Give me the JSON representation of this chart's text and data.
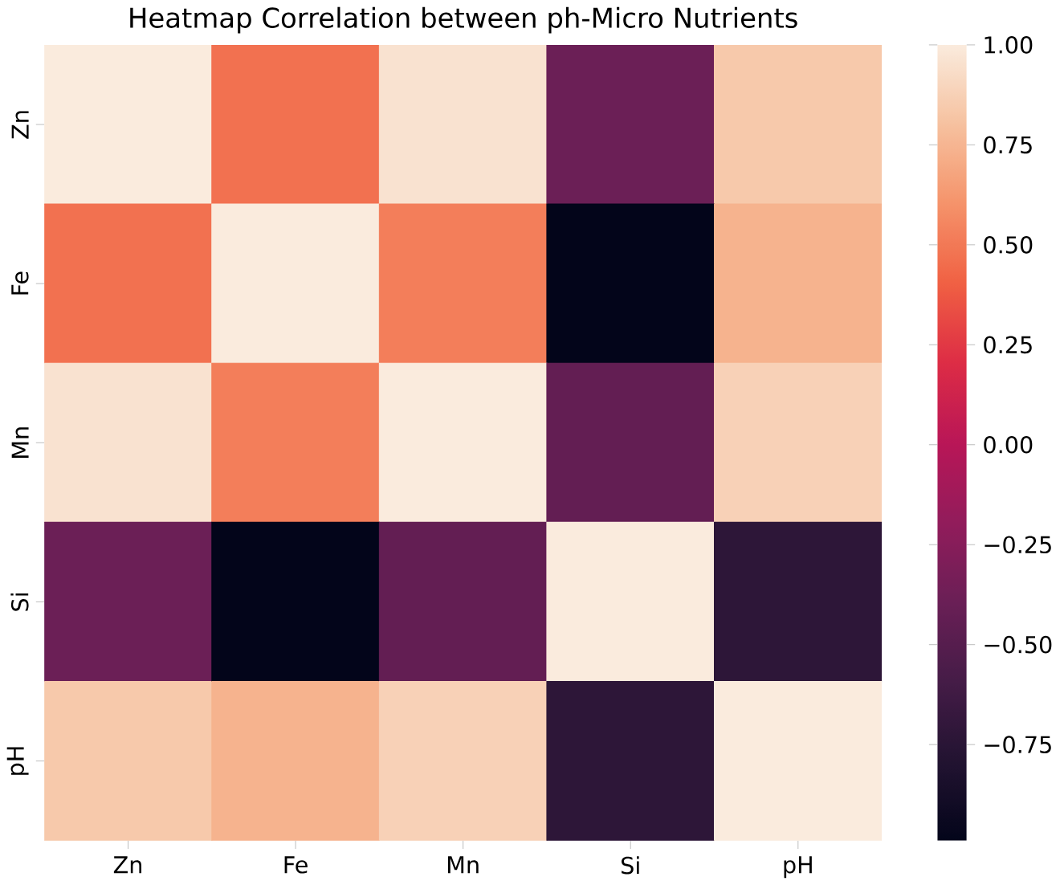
{
  "chart_data": {
    "type": "heatmap",
    "title": "Heatmap Correlation between ph-Micro Nutrients",
    "categories": [
      "Zn",
      "Fe",
      "Mn",
      "Si",
      "pH"
    ],
    "y_categories": [
      "Zn",
      "Fe",
      "Mn",
      "Si",
      "pH"
    ],
    "cells": [
      [
        1.0,
        0.47,
        0.96,
        -0.39,
        0.84
      ],
      [
        0.47,
        1.0,
        0.52,
        -0.99,
        0.74
      ],
      [
        0.96,
        0.52,
        1.0,
        -0.43,
        0.88
      ],
      [
        -0.39,
        -0.99,
        -0.43,
        1.0,
        -0.73
      ],
      [
        0.84,
        0.74,
        0.88,
        -0.73,
        1.0
      ]
    ],
    "clim": [
      -0.99,
      1.0
    ],
    "cticks": [
      {
        "value": 1.0,
        "label": "1.00"
      },
      {
        "value": 0.75,
        "label": "0.75"
      },
      {
        "value": 0.5,
        "label": "0.50"
      },
      {
        "value": 0.25,
        "label": "0.25"
      },
      {
        "value": 0.0,
        "label": "0.00"
      },
      {
        "value": -0.25,
        "label": "−0.25"
      },
      {
        "value": -0.5,
        "label": "−0.50"
      },
      {
        "value": -0.75,
        "label": "−0.75"
      }
    ]
  }
}
